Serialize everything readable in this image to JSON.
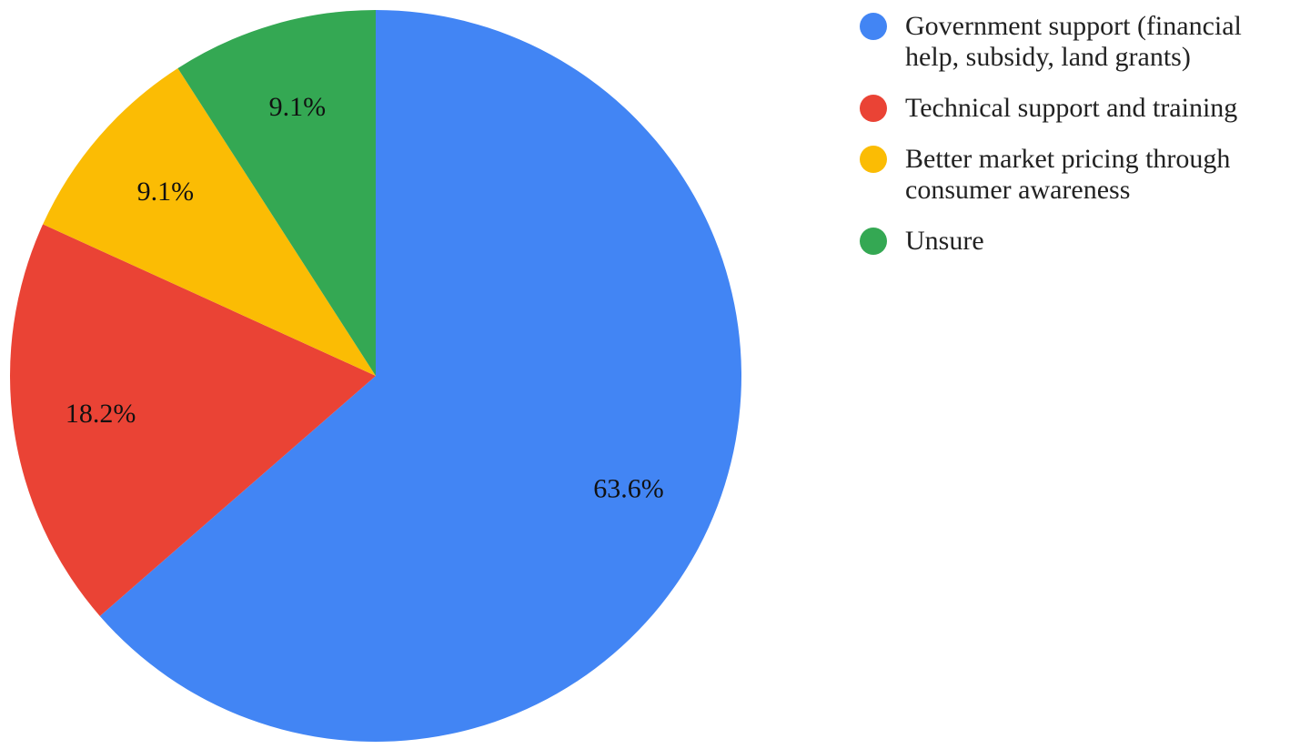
{
  "chart_data": {
    "type": "pie",
    "categories": [
      "Government support (financial help, subsidy, land grants)",
      "Technical support and training",
      "Better market pricing through consumer awareness",
      "Unsure"
    ],
    "values": [
      63.6,
      18.2,
      9.1,
      9.1
    ],
    "value_labels": [
      "63.6%",
      "18.2%",
      "9.1%",
      "9.1%"
    ],
    "colors": [
      "#4285f4",
      "#ea4335",
      "#fbbc04",
      "#34a853"
    ],
    "legend": "right"
  }
}
